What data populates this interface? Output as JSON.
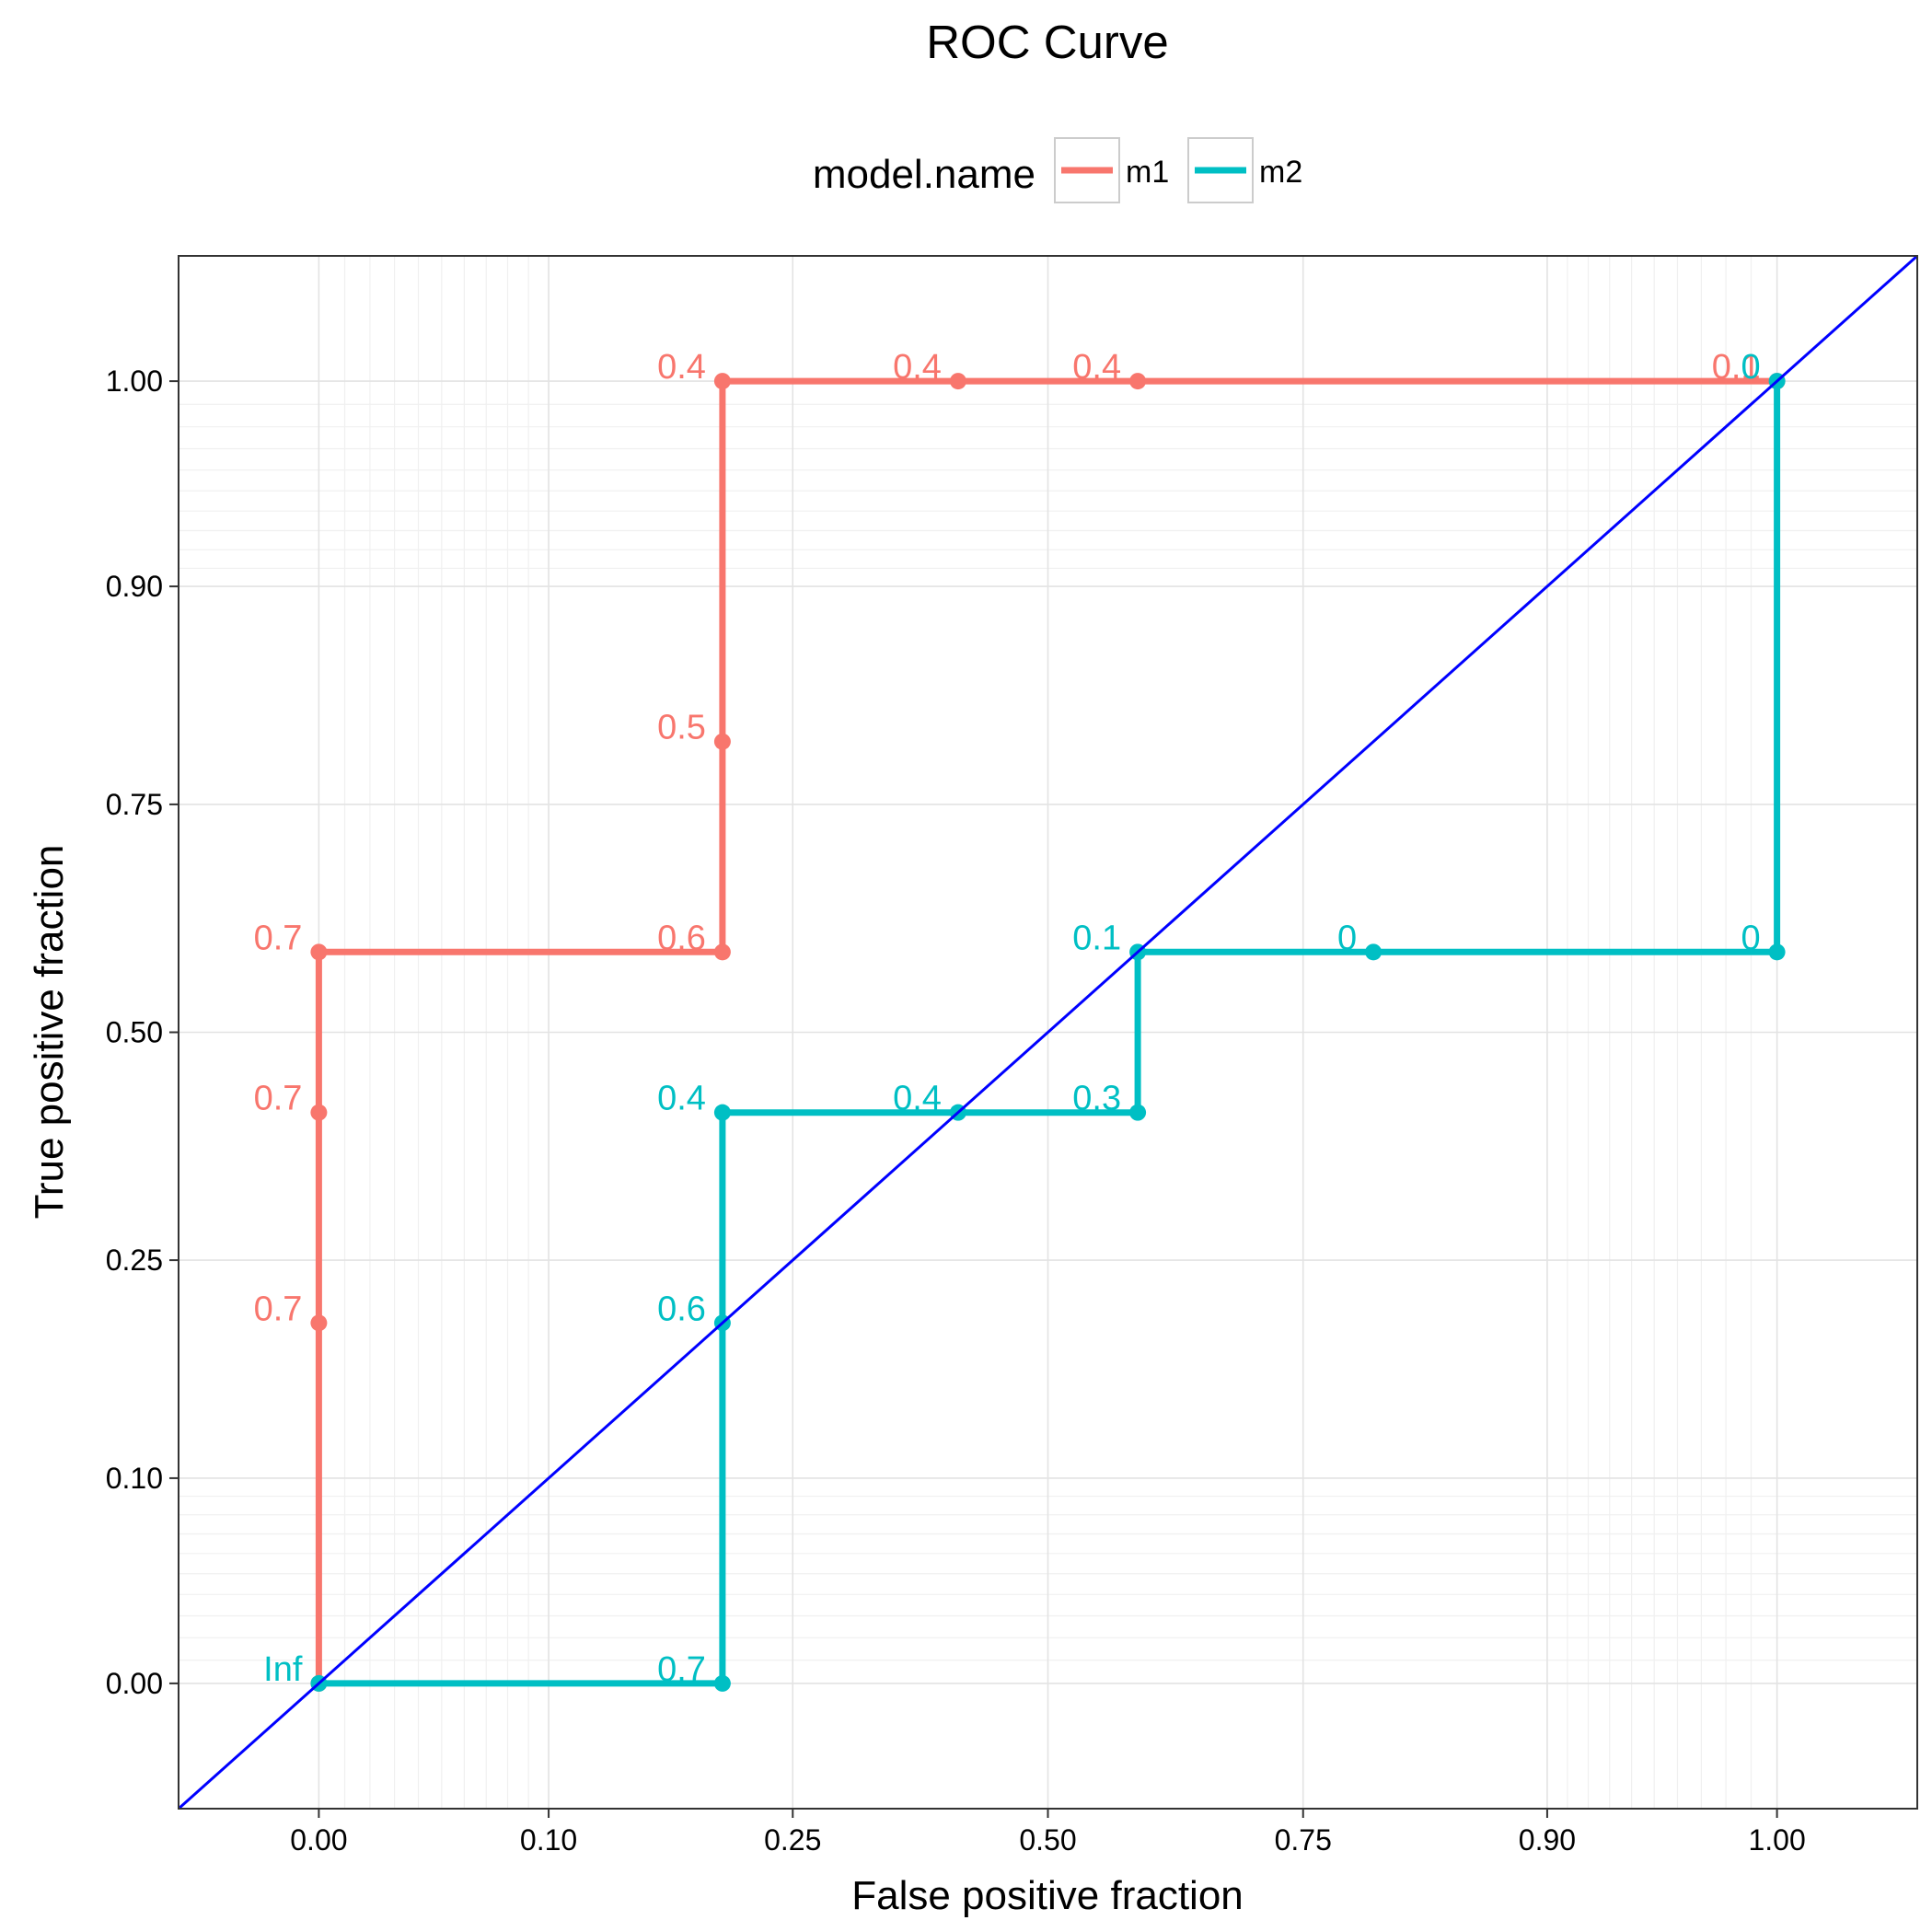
{
  "chart_data": {
    "type": "line",
    "title": "ROC Curve",
    "xlabel": "False positive fraction",
    "ylabel": "True positive fraction",
    "xlim": [
      -0.05,
      1.05
    ],
    "ylim": [
      -0.05,
      1.05
    ],
    "x_ticks": [
      {
        "value": 0.0,
        "label": "0.00"
      },
      {
        "value": 0.1,
        "label": "0.10"
      },
      {
        "value": 0.25,
        "label": "0.25"
      },
      {
        "value": 0.5,
        "label": "0.50"
      },
      {
        "value": 0.75,
        "label": "0.75"
      },
      {
        "value": 0.9,
        "label": "0.90"
      },
      {
        "value": 1.0,
        "label": "1.00"
      }
    ],
    "y_ticks": [
      {
        "value": 0.0,
        "label": "0.00"
      },
      {
        "value": 0.1,
        "label": "0.10"
      },
      {
        "value": 0.25,
        "label": "0.25"
      },
      {
        "value": 0.5,
        "label": "0.50"
      },
      {
        "value": 0.75,
        "label": "0.75"
      },
      {
        "value": 0.9,
        "label": "0.90"
      },
      {
        "value": 1.0,
        "label": "1.00"
      }
    ],
    "grid": true,
    "legend": {
      "title": "model.name",
      "position": "top",
      "entries": [
        {
          "label": "m1",
          "color": "#F8766D"
        },
        {
          "label": "m2",
          "color": "#00BFC4"
        }
      ]
    },
    "series": [
      {
        "name": "m1",
        "color": "#F8766D",
        "points": [
          {
            "x": 0.0,
            "y": 0.0,
            "label": ""
          },
          {
            "x": 0.0,
            "y": 0.2,
            "label": "0.7"
          },
          {
            "x": 0.0,
            "y": 0.4,
            "label": "0.7"
          },
          {
            "x": 0.0,
            "y": 0.6,
            "label": "0.7"
          },
          {
            "x": 0.2,
            "y": 0.6,
            "label": "0.6"
          },
          {
            "x": 0.2,
            "y": 0.8,
            "label": "0.5"
          },
          {
            "x": 0.2,
            "y": 1.0,
            "label": "0.4"
          },
          {
            "x": 0.4,
            "y": 1.0,
            "label": "0.4"
          },
          {
            "x": 0.6,
            "y": 1.0,
            "label": "0.4"
          },
          {
            "x": 1.0,
            "y": 1.0,
            "label": "0.1"
          }
        ]
      },
      {
        "name": "m2",
        "color": "#00BFC4",
        "points": [
          {
            "x": 0.0,
            "y": 0.0,
            "label": "Inf"
          },
          {
            "x": 0.2,
            "y": 0.0,
            "label": "0.7"
          },
          {
            "x": 0.2,
            "y": 0.2,
            "label": "0.6"
          },
          {
            "x": 0.2,
            "y": 0.4,
            "label": "0.4"
          },
          {
            "x": 0.4,
            "y": 0.4,
            "label": "0.4"
          },
          {
            "x": 0.6,
            "y": 0.4,
            "label": "0.3"
          },
          {
            "x": 0.6,
            "y": 0.6,
            "label": "0.1"
          },
          {
            "x": 0.8,
            "y": 0.6,
            "label": "0"
          },
          {
            "x": 1.0,
            "y": 0.6,
            "label": "0"
          },
          {
            "x": 1.0,
            "y": 1.0,
            "label": "0"
          }
        ]
      }
    ],
    "reference_line": {
      "x": [
        -0.05,
        1.05
      ],
      "y": [
        -0.05,
        1.05
      ],
      "color": "#0000FF"
    }
  }
}
